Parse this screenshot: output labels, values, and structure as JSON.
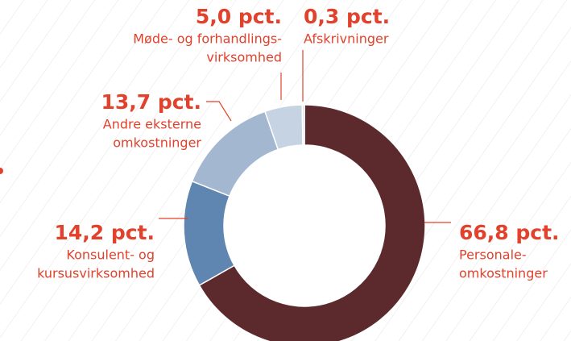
{
  "chart_data": {
    "type": "donut",
    "categories": [
      [
        "Personale-",
        "omkostninger"
      ],
      [
        "Konsulent- og",
        "kursusvirksomhed"
      ],
      [
        "Andre eksterne",
        "omkostninger"
      ],
      [
        "Møde- og forhandlings-",
        "virksomhed"
      ],
      [
        "Afskrivninger"
      ]
    ],
    "values": [
      66.8,
      14.2,
      13.7,
      5.0,
      0.3
    ],
    "value_labels": [
      "66,8 pct.",
      "14,2 pct.",
      "13,7 pct.",
      "5,0 pct.",
      "0,3 pct."
    ],
    "colors": [
      "#5c2a2c",
      "#5f86b0",
      "#a3b7d0",
      "#c5d3e2",
      "#dde3ea"
    ]
  }
}
